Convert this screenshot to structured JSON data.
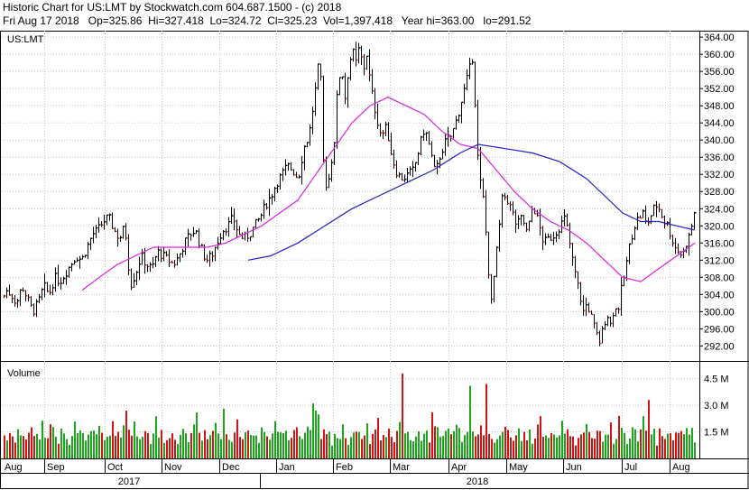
{
  "header": {
    "line1": "Historic Chart for US:LMT by Stockwatch.com 604.687.1500 - (c) 2018",
    "line2": "Fri Aug 17 2018   Op=325.86  Hi=327.418  Lo=324.72  Cl=325.23  Vol=1,397,418   Year hi=363.00   lo=291.52"
  },
  "colors": {
    "bg": "#ffffff",
    "grid": "#c8c8c8",
    "up": "#1aa51a",
    "down": "#d01414",
    "bar": "#000000",
    "ma_short": "#e020e0",
    "ma_long": "#2020c8"
  },
  "chart_data": {
    "type": "line",
    "symbol": "US:LMT",
    "title": "US:LMT",
    "y_ticks": [
      "364.00",
      "360.00",
      "356.00",
      "352.00",
      "348.00",
      "344.00",
      "340.00",
      "336.00",
      "332.00",
      "328.00",
      "324.00",
      "320.00",
      "316.00",
      "312.00",
      "308.00",
      "304.00",
      "300.00",
      "296.00",
      "292.00"
    ],
    "ylim": [
      288.5,
      365.5
    ],
    "months": [
      "Aug",
      "Sep",
      "Oct",
      "Nov",
      "Dec",
      "Jan",
      "Feb",
      "Mar",
      "Apr",
      "May",
      "Jun",
      "Jul",
      "Aug"
    ],
    "years": [
      "2017",
      "2018"
    ],
    "series": [
      {
        "name": "price",
        "points": [
          [
            0,
            301
          ],
          [
            6,
            305
          ],
          [
            12,
            304
          ],
          [
            18,
            302
          ],
          [
            24,
            306
          ],
          [
            30,
            303
          ],
          [
            36,
            300
          ],
          [
            42,
            302
          ],
          [
            48,
            306
          ],
          [
            54,
            304
          ],
          [
            60,
            308
          ],
          [
            66,
            307
          ],
          [
            72,
            309
          ],
          [
            78,
            311
          ],
          [
            84,
            313
          ],
          [
            90,
            312
          ],
          [
            96,
            315
          ],
          [
            102,
            318
          ],
          [
            108,
            319
          ],
          [
            114,
            321
          ],
          [
            120,
            322
          ],
          [
            126,
            319
          ],
          [
            132,
            317
          ],
          [
            138,
            320
          ],
          [
            144,
            306
          ],
          [
            150,
            309
          ],
          [
            156,
            313
          ],
          [
            162,
            311
          ],
          [
            168,
            310
          ],
          [
            174,
            314
          ],
          [
            180,
            313
          ],
          [
            186,
            312
          ],
          [
            192,
            311
          ],
          [
            198,
            313
          ],
          [
            204,
            316
          ],
          [
            210,
            318
          ],
          [
            216,
            319
          ],
          [
            222,
            315
          ],
          [
            228,
            312
          ],
          [
            234,
            313
          ],
          [
            240,
            316
          ],
          [
            246,
            319
          ],
          [
            252,
            320
          ],
          [
            258,
            322
          ],
          [
            264,
            318
          ],
          [
            270,
            317
          ],
          [
            276,
            318
          ],
          [
            282,
            320
          ],
          [
            288,
            322
          ],
          [
            294,
            325
          ],
          [
            300,
            327
          ],
          [
            306,
            330
          ],
          [
            312,
            332
          ],
          [
            318,
            334
          ],
          [
            324,
            333
          ],
          [
            330,
            331
          ],
          [
            336,
            338
          ],
          [
            342,
            341
          ],
          [
            348,
            350
          ],
          [
            354,
            360
          ],
          [
            358,
            335
          ],
          [
            362,
            328
          ],
          [
            366,
            334
          ],
          [
            370,
            340
          ],
          [
            374,
            353
          ],
          [
            378,
            357
          ],
          [
            382,
            350
          ],
          [
            386,
            357
          ],
          [
            390,
            361
          ],
          [
            394,
            358
          ],
          [
            398,
            362
          ],
          [
            402,
            356
          ],
          [
            406,
            360
          ],
          [
            410,
            353
          ],
          [
            416,
            346
          ],
          [
            422,
            341
          ],
          [
            428,
            343
          ],
          [
            434,
            336
          ],
          [
            440,
            332
          ],
          [
            446,
            331
          ],
          [
            452,
            332
          ],
          [
            458,
            333
          ],
          [
            464,
            338
          ],
          [
            470,
            343
          ],
          [
            476,
            338
          ],
          [
            482,
            332
          ],
          [
            488,
            337
          ],
          [
            494,
            340
          ],
          [
            500,
            341
          ],
          [
            506,
            345
          ],
          [
            512,
            350
          ],
          [
            518,
            355
          ],
          [
            524,
            360
          ],
          [
            528,
            338
          ],
          [
            532,
            330
          ],
          [
            536,
            325
          ],
          [
            540,
            312
          ],
          [
            544,
            302
          ],
          [
            548,
            310
          ],
          [
            552,
            318
          ],
          [
            556,
            326
          ],
          [
            560,
            327
          ],
          [
            566,
            324
          ],
          [
            572,
            320
          ],
          [
            578,
            322
          ],
          [
            584,
            318
          ],
          [
            590,
            325
          ],
          [
            596,
            321
          ],
          [
            602,
            316
          ],
          [
            608,
            317
          ],
          [
            614,
            318
          ],
          [
            620,
            320
          ],
          [
            626,
            322
          ],
          [
            630,
            317
          ],
          [
            634,
            312
          ],
          [
            638,
            308
          ],
          [
            642,
            304
          ],
          [
            646,
            300
          ],
          [
            650,
            302
          ],
          [
            656,
            298
          ],
          [
            660,
            295
          ],
          [
            664,
            293
          ],
          [
            668,
            296
          ],
          [
            672,
            300
          ],
          [
            676,
            297
          ],
          [
            680,
            301
          ],
          [
            684,
            300
          ],
          [
            688,
            305
          ],
          [
            692,
            309
          ],
          [
            696,
            314
          ],
          [
            700,
            318
          ],
          [
            704,
            321
          ],
          [
            708,
            322
          ],
          [
            712,
            323
          ],
          [
            716,
            320
          ],
          [
            720,
            322
          ],
          [
            724,
            324
          ],
          [
            728,
            325
          ],
          [
            732,
            323
          ],
          [
            736,
            321
          ],
          [
            740,
            320
          ],
          [
            744,
            317
          ],
          [
            748,
            315
          ],
          [
            752,
            314
          ],
          [
            756,
            313
          ],
          [
            760,
            316
          ],
          [
            764,
            318
          ],
          [
            768,
            322
          ],
          [
            771,
            325
          ]
        ]
      },
      {
        "name": "short moving average",
        "points": [
          [
            91,
            305
          ],
          [
            110,
            308
          ],
          [
            130,
            311
          ],
          [
            150,
            313
          ],
          [
            170,
            315
          ],
          [
            190,
            315
          ],
          [
            210,
            315
          ],
          [
            230,
            315
          ],
          [
            250,
            316
          ],
          [
            270,
            318
          ],
          [
            290,
            320
          ],
          [
            310,
            323
          ],
          [
            330,
            326
          ],
          [
            350,
            332
          ],
          [
            370,
            338
          ],
          [
            390,
            344
          ],
          [
            410,
            348
          ],
          [
            430,
            350
          ],
          [
            450,
            348
          ],
          [
            470,
            346
          ],
          [
            490,
            342
          ],
          [
            510,
            339
          ],
          [
            530,
            338
          ],
          [
            550,
            333
          ],
          [
            570,
            328
          ],
          [
            590,
            324
          ],
          [
            610,
            321
          ],
          [
            630,
            319
          ],
          [
            650,
            316
          ],
          [
            670,
            312
          ],
          [
            690,
            308
          ],
          [
            710,
            307
          ],
          [
            730,
            310
          ],
          [
            750,
            313
          ],
          [
            770,
            316
          ]
        ]
      },
      {
        "name": "long moving average",
        "points": [
          [
            275,
            312
          ],
          [
            300,
            313
          ],
          [
            330,
            316
          ],
          [
            360,
            320
          ],
          [
            390,
            324
          ],
          [
            420,
            327
          ],
          [
            450,
            330
          ],
          [
            480,
            333
          ],
          [
            510,
            337
          ],
          [
            530,
            339
          ],
          [
            560,
            338
          ],
          [
            590,
            337
          ],
          [
            620,
            335
          ],
          [
            650,
            331
          ],
          [
            670,
            327
          ],
          [
            690,
            323
          ],
          [
            710,
            321
          ],
          [
            730,
            321
          ],
          [
            750,
            320
          ],
          [
            770,
            319
          ]
        ]
      }
    ],
    "volume": {
      "ylabel": "Volume",
      "ticks": [
        "4.5 M",
        "3.0 M",
        "1.5 M"
      ],
      "ylim": [
        0,
        5.4
      ],
      "spikes": [
        [
          140,
          2.7
        ],
        [
          218,
          2.6
        ],
        [
          246,
          2.8
        ],
        [
          345,
          3.1
        ],
        [
          349,
          2.7
        ],
        [
          444,
          4.8
        ],
        [
          478,
          2.6
        ],
        [
          520,
          4.1
        ],
        [
          539,
          4.2
        ],
        [
          684,
          2.4
        ],
        [
          717,
          3.3
        ]
      ],
      "base": [
        0.9,
        1.1,
        0.8,
        1.2,
        1.0,
        0.9,
        1.4,
        1.1,
        0.8,
        1.0,
        1.3,
        1.6,
        0.9,
        1.2,
        1.0,
        1.7,
        0.8,
        1.1,
        1.4,
        1.9,
        1.0,
        0.9,
        1.2,
        1.5,
        1.1,
        0.8,
        1.3,
        2.0,
        1.0,
        1.2
      ]
    }
  }
}
